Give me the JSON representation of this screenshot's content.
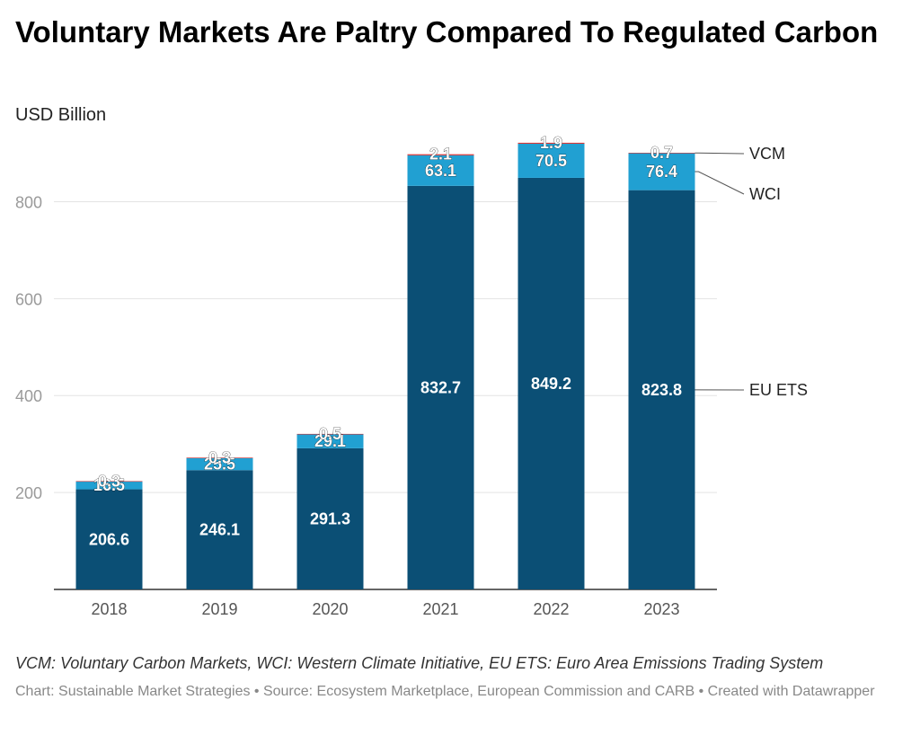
{
  "title": "Voluntary Markets Are Paltry Compared To Regulated Carbon",
  "subtitle": "USD Billion",
  "notes": "VCM: Voluntary Carbon Markets, WCI: Western Climate Initiative, EU ETS: Euro Area Emissions Trading System",
  "credit": "Chart: Sustainable Market Strategies • Source: Ecosystem Marketplace, European Commission and CARB • Created with Datawrapper",
  "chart_data": {
    "type": "bar",
    "stacked": true,
    "categories": [
      "2018",
      "2019",
      "2020",
      "2021",
      "2022",
      "2023"
    ],
    "series": [
      {
        "name": "EU ETS",
        "values": [
          206.6,
          246.1,
          291.3,
          832.7,
          849.2,
          823.8
        ],
        "labels": [
          "206.6",
          "246.1",
          "291.3",
          "832.7",
          "849.2",
          "823.8"
        ],
        "color": "#0b4f75"
      },
      {
        "name": "WCI",
        "values": [
          16.5,
          25.5,
          29.1,
          63.1,
          70.5,
          76.4
        ],
        "labels": [
          "16.5",
          "25.5",
          "29.1",
          "63.1",
          "70.5",
          "76.4"
        ],
        "color": "#21a0d2"
      },
      {
        "name": "VCM",
        "values": [
          0.3,
          0.3,
          0.5,
          2.1,
          1.9,
          0.7
        ],
        "labels": [
          "0.3",
          "0.3",
          "0.5",
          "2.1",
          "1.9",
          "0.7"
        ],
        "color": "#d62828"
      }
    ],
    "ylim": [
      0,
      980
    ],
    "yticks": [
      200,
      400,
      600,
      800
    ],
    "xlabel": "",
    "ylabel": "",
    "grid": true,
    "legend": "direct labels at right"
  }
}
